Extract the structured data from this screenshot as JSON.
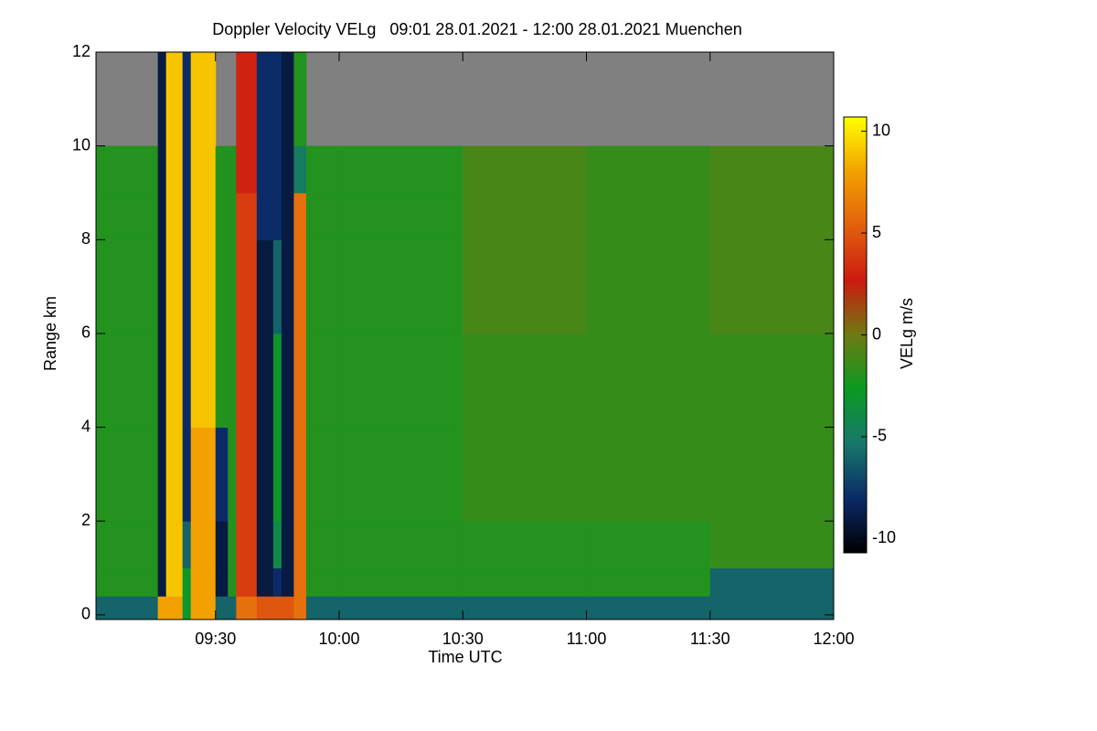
{
  "chart_data": {
    "type": "heatmap",
    "title": "Doppler Velocity VELg   09:01 28.01.2021 - 12:00 28.01.2021 Muenchen",
    "xlabel": "Time UTC",
    "ylabel": "Range km",
    "colorbar_label": "VELg m/s",
    "x": [
      "09:01",
      "09:16",
      "09:18",
      "09:22",
      "09:24",
      "09:30",
      "09:33",
      "09:35",
      "09:40",
      "09:44",
      "09:46",
      "09:49",
      "09:52",
      "10:00",
      "10:30",
      "11:00",
      "11:30",
      "12:00"
    ],
    "y": [
      -0.1,
      0.4,
      1,
      2,
      4,
      6,
      8,
      9,
      10,
      12
    ],
    "z": [
      [
        -6,
        8,
        8,
        -3,
        8,
        -6,
        -6,
        6,
        5,
        5,
        5,
        6,
        -6,
        -6,
        -6,
        -6,
        -6
      ],
      [
        -2,
        -9,
        9,
        -3,
        8,
        -9,
        -2,
        4,
        -9,
        -8,
        -9,
        6,
        -2,
        -2,
        -2,
        -2,
        -6
      ],
      [
        -2,
        -9,
        9,
        -6,
        8,
        -9,
        -2,
        4,
        -9,
        -4,
        -9,
        6,
        -2,
        -2,
        -2,
        -2,
        -1.5
      ],
      [
        -2,
        -9,
        9,
        -8,
        8,
        -8,
        -2,
        4,
        -9,
        -3,
        -9,
        6,
        -2,
        -2,
        -1.5,
        -1.5,
        -1.5
      ],
      [
        -2,
        -9,
        9,
        -8,
        9,
        -2,
        -2,
        4,
        -9,
        -3,
        -9,
        6,
        -2,
        -2,
        -1.5,
        -1.5,
        -1.5
      ],
      [
        -2,
        -9,
        9,
        -8,
        9,
        -2,
        -2,
        4,
        -9,
        -6,
        -9,
        6,
        -2,
        -2,
        -1,
        -1.5,
        -1
      ],
      [
        -2,
        -9,
        9,
        -8,
        9,
        -2,
        -2,
        4,
        -8,
        -8,
        -9,
        6,
        -2,
        -2,
        -1,
        -1.5,
        -1
      ],
      [
        -2,
        -9,
        9,
        -8,
        9,
        -2,
        -2,
        3,
        -8,
        -8,
        -9,
        -5,
        -2,
        -2,
        -1,
        -1.5,
        -1
      ],
      [
        null,
        -9,
        9,
        -8,
        9,
        null,
        null,
        3,
        -8,
        -8,
        -9,
        -2,
        null,
        null,
        null,
        null,
        null
      ]
    ],
    "xlim": [
      "09:01",
      "12:00"
    ],
    "ylim": [
      -0.1,
      12
    ],
    "xticks": [
      "09:30",
      "10:00",
      "10:30",
      "11:00",
      "11:30",
      "12:00"
    ],
    "yticks": [
      0,
      2,
      4,
      6,
      8,
      10,
      12
    ],
    "zlim": [
      -10.7,
      10.7
    ],
    "zticks": [
      -10,
      -5,
      0,
      5,
      10
    ],
    "colormap": [
      "#000000",
      "#0b2a68",
      "#17776a",
      "#0a9a22",
      "#6e7a12",
      "#cc1a10",
      "#e2600e",
      "#f2a200",
      "#ffff00"
    ],
    "nan_color": "#808080"
  }
}
